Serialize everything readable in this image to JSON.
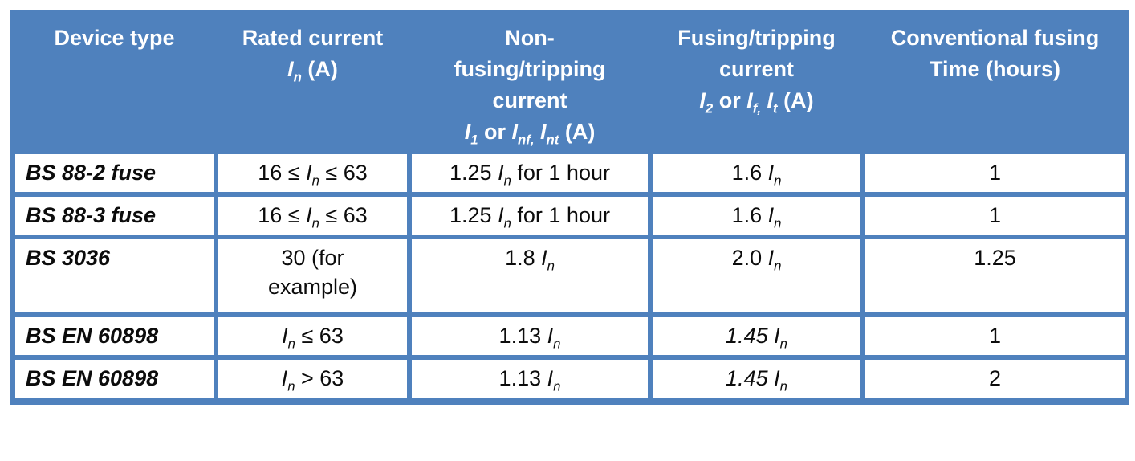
{
  "page": {
    "background": "#ffffff"
  },
  "table": {
    "accent_color": "#4f81bd",
    "header_text_color": "#ffffff",
    "header": [
      {
        "name": "device-type",
        "segments": [
          {
            "t": "Device type"
          }
        ]
      },
      {
        "name": "rated-current",
        "segments": [
          {
            "t": "Rated current"
          },
          {
            "br": true
          },
          {
            "t": "I",
            "s": "i"
          },
          {
            "t": "n",
            "s": "isub"
          },
          {
            "t": " (A)"
          }
        ]
      },
      {
        "name": "non-fusing-tripping-current",
        "segments": [
          {
            "t": "Non-"
          },
          {
            "br": true
          },
          {
            "t": "fusing/tripping"
          },
          {
            "br": true
          },
          {
            "t": "current"
          },
          {
            "br": true
          },
          {
            "t": "I",
            "s": "i"
          },
          {
            "t": "1",
            "s": "isub"
          },
          {
            "t": " or "
          },
          {
            "t": "I",
            "s": "i"
          },
          {
            "t": "nf,",
            "s": "isub"
          },
          {
            "t": " "
          },
          {
            "t": "I",
            "s": "i"
          },
          {
            "t": "nt",
            "s": "isub"
          },
          {
            "t": " (A)"
          }
        ]
      },
      {
        "name": "fusing-tripping-current",
        "segments": [
          {
            "t": "Fusing/tripping"
          },
          {
            "br": true
          },
          {
            "t": "current"
          },
          {
            "br": true
          },
          {
            "t": "I",
            "s": "i"
          },
          {
            "t": "2",
            "s": "isub"
          },
          {
            "t": " or "
          },
          {
            "t": "I",
            "s": "i"
          },
          {
            "t": "f,",
            "s": "isub"
          },
          {
            "t": " "
          },
          {
            "t": "I",
            "s": "i"
          },
          {
            "t": "t",
            "s": "isub"
          },
          {
            "t": " (A)"
          }
        ]
      },
      {
        "name": "conventional-fusing-time",
        "segments": [
          {
            "t": "Conventional fusing"
          },
          {
            "br": true
          },
          {
            "t": "Time (hours)"
          }
        ]
      }
    ],
    "rows": [
      {
        "device": "BS 88-2 fuse",
        "cells": [
          [
            {
              "t": "16 ≤ "
            },
            {
              "t": "I",
              "s": "i"
            },
            {
              "t": "n",
              "s": "isub"
            },
            {
              "t": " ≤ 63"
            }
          ],
          [
            {
              "t": "1.25 "
            },
            {
              "t": "I",
              "s": "i"
            },
            {
              "t": "n",
              "s": "isub"
            },
            {
              "t": " for 1 hour"
            }
          ],
          [
            {
              "t": "1.6 "
            },
            {
              "t": "I",
              "s": "i"
            },
            {
              "t": "n",
              "s": "isub"
            }
          ],
          [
            {
              "t": "1"
            }
          ]
        ]
      },
      {
        "device": "BS 88-3 fuse",
        "cells": [
          [
            {
              "t": "16 ≤ "
            },
            {
              "t": "I",
              "s": "i"
            },
            {
              "t": "n",
              "s": "isub"
            },
            {
              "t": " ≤ 63"
            }
          ],
          [
            {
              "t": "1.25 "
            },
            {
              "t": "I",
              "s": "i"
            },
            {
              "t": "n",
              "s": "isub"
            },
            {
              "t": " for 1 hour"
            }
          ],
          [
            {
              "t": "1.6 "
            },
            {
              "t": "I",
              "s": "i"
            },
            {
              "t": "n",
              "s": "isub"
            }
          ],
          [
            {
              "t": "1"
            }
          ]
        ]
      },
      {
        "device": "BS 3036",
        "cells": [
          [
            {
              "t": "30 (for"
            },
            {
              "br": true
            },
            {
              "t": "example)"
            }
          ],
          [
            {
              "t": "1.8 "
            },
            {
              "t": "I",
              "s": "i"
            },
            {
              "t": "n",
              "s": "isub"
            }
          ],
          [
            {
              "t": "2.0 "
            },
            {
              "t": "I",
              "s": "i"
            },
            {
              "t": "n",
              "s": "isub"
            }
          ],
          [
            {
              "t": "1.25"
            }
          ]
        ]
      },
      {
        "device": "BS EN 60898",
        "cells": [
          [
            {
              "t": "I",
              "s": "i"
            },
            {
              "t": "n",
              "s": "isub"
            },
            {
              "t": " ≤ 63"
            }
          ],
          [
            {
              "t": "1.13 "
            },
            {
              "t": "I",
              "s": "i"
            },
            {
              "t": "n",
              "s": "isub"
            }
          ],
          [
            {
              "t": "1.45 ",
              "s": "i"
            },
            {
              "t": "I",
              "s": "i"
            },
            {
              "t": "n",
              "s": "isub"
            }
          ],
          [
            {
              "t": "1"
            }
          ]
        ]
      },
      {
        "device": "BS EN 60898",
        "cells": [
          [
            {
              "t": "I",
              "s": "i"
            },
            {
              "t": "n",
              "s": "isub"
            },
            {
              "t": " > 63"
            }
          ],
          [
            {
              "t": "1.13 "
            },
            {
              "t": "I",
              "s": "i"
            },
            {
              "t": "n",
              "s": "isub"
            }
          ],
          [
            {
              "t": "1.45 ",
              "s": "i"
            },
            {
              "t": "I",
              "s": "i"
            },
            {
              "t": "n",
              "s": "isub"
            }
          ],
          [
            {
              "t": "2"
            }
          ]
        ]
      }
    ]
  }
}
